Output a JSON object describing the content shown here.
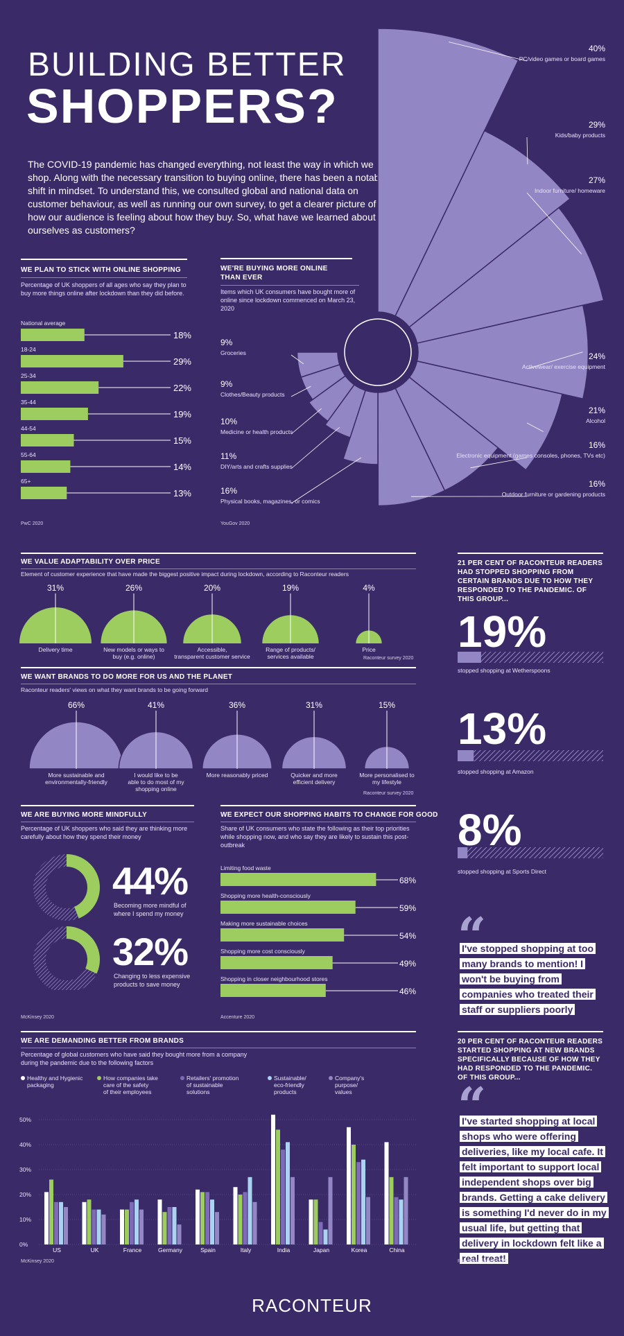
{
  "header": {
    "title_line1": "BUILDING BETTER",
    "title_line2": "SHOPPERS?",
    "intro": "The COVID-19 pandemic has changed everything, not least the way in which we shop. Along with the necessary transition to buying online, there has been a notable shift in mindset. To understand this, we consulted global and national data on customer behaviour, as well as running our own survey, to get a clearer picture of how our audience is feeling about how they buy. So, what have we learned about ourselves as customers?"
  },
  "colors": {
    "background": "#3b2a68",
    "green": "#9ccd5e",
    "lavender": "#9386c4",
    "light_blue": "#a9d3f0",
    "accent_purple": "#7e6bb8"
  },
  "online_stick": {
    "title": "WE PLAN TO STICK WITH ONLINE SHOPPING",
    "desc": "Percentage of UK shoppers of all ages who say they plan to buy more things online after lockdown than they did before.",
    "source": "PwC 2020"
  },
  "buying_more": {
    "title": "WE'RE BUYING MORE ONLINE THAN EVER",
    "desc": "Items which UK consumers have bought more of online since lockdown commenced on March 23, 2020",
    "source": "YouGov 2020"
  },
  "adaptability": {
    "title": "WE VALUE ADAPTABILITY OVER PRICE",
    "desc": "Element of customer experience that have made the biggest positive impact during lockdown, according to Raconteur readers",
    "source": "Raconteur survey 2020"
  },
  "brands_more": {
    "title": "WE WANT BRANDS TO DO MORE FOR US AND THE PLANET",
    "desc": "Raconteur readers' views on what they want brands to be going forward",
    "source": "Raconteur survey 2020"
  },
  "mindful": {
    "title": "WE ARE BUYING MORE MINDFULLY",
    "desc": "Percentage of UK shoppers who said they are thinking more carefully about how they spend their money",
    "source": "McKinsey 2020",
    "items": [
      {
        "value": "44%",
        "label": "Becoming more mindful of where I spend my money"
      },
      {
        "value": "32%",
        "label": "Changing to less expensive products to save money"
      }
    ]
  },
  "habits": {
    "title": "WE EXPECT OUR SHOPPING HABITS TO CHANGE FOR GOOD",
    "desc": "Share of UK consumers who state the following as their top priorities while shopping now, and who say they are likely to sustain this post-outbreak",
    "source": "Accenture 2020"
  },
  "demanding": {
    "title": "WE ARE DEMANDING BETTER FROM BRANDS",
    "desc": "Percentage of global customers who have said they bought more from a company during the pandemic due to the following factors",
    "source": "McKinsey 2020"
  },
  "stopped": {
    "title": "21 PER CENT OF RACONTEUR READERS HAD STOPPED SHOPPING FROM CERTAIN BRANDS DUE TO HOW THEY RESPONDED TO THE PANDEMIC. OF THIS GROUP...",
    "items": [
      {
        "value": "19%",
        "pct": 19,
        "label": "stopped shopping at Wetherspoons"
      },
      {
        "value": "13%",
        "pct": 13,
        "label": "stopped shopping at Amazon"
      },
      {
        "value": "8%",
        "pct": 8,
        "label": "stopped shopping at Sports Direct"
      }
    ],
    "quote": "I've stopped shopping at too many brands to mention! I won't be buying from companies who treated their staff or suppliers poorly"
  },
  "started": {
    "title": "20 PER CENT OF RACONTEUR READERS STARTED SHOPPING AT NEW BRANDS SPECIFICALLY BECAUSE OF HOW THEY HAD RESPONDED TO THE PANDEMIC. OF THIS GROUP...",
    "quote": "I've started shopping at local shops who were offering deliveries, like my local cafe. It felt important to support local independent shops over big brands. Getting a cake delivery is something I'd never do in my usual life, but getting that delivery in lockdown felt like a real treat!",
    "source": "Raconteur survey 2020"
  },
  "footer": {
    "brand": "RACONTEUR"
  },
  "chart_data": [
    {
      "type": "bar",
      "title": "WE PLAN TO STICK WITH ONLINE SHOPPING",
      "categories": [
        "National average",
        "18-24",
        "25-34",
        "35-44",
        "44-54",
        "55-64",
        "65+"
      ],
      "values": [
        18,
        29,
        22,
        19,
        15,
        14,
        13
      ],
      "unit": "%"
    },
    {
      "type": "pie",
      "title": "WE'RE BUYING MORE ONLINE THAN EVER",
      "categories": [
        "PC/video games or board games",
        "Kids/baby products",
        "Indoor furniture/ homeware",
        "Activewear/ exercise equipment",
        "Alcohol",
        "Electronic equipment (games consoles, phones, TVs etc)",
        "Outdoor furniture or gardening products",
        "Physical books, magazines, or comics",
        "DIY/arts and crafts supplies",
        "Medicine or health products",
        "Clothes/Beauty products",
        "Groceries"
      ],
      "values": [
        40,
        29,
        27,
        24,
        21,
        16,
        16,
        16,
        11,
        10,
        9,
        9
      ],
      "unit": "%"
    },
    {
      "type": "bar",
      "title": "WE VALUE ADAPTABILITY OVER PRICE",
      "categories": [
        "Delivery time",
        "New models or ways to buy (e.g. online)",
        "Accessible, transparent customer service",
        "Range of products/ services available",
        "Price"
      ],
      "values": [
        31,
        26,
        20,
        19,
        4
      ],
      "unit": "%"
    },
    {
      "type": "bar",
      "title": "WE WANT BRANDS TO DO MORE FOR US AND THE PLANET",
      "categories": [
        "More sustainable and environmentally-friendly",
        "I would like to be able to do most of my shopping online",
        "More reasonably priced",
        "Quicker and more efficient delivery",
        "More personalised to my lifestyle"
      ],
      "values": [
        66,
        41,
        36,
        31,
        15
      ],
      "unit": "%"
    },
    {
      "type": "bar",
      "title": "WE EXPECT OUR SHOPPING HABITS TO CHANGE FOR GOOD",
      "categories": [
        "Limiting food waste",
        "Shopping more health-consciously",
        "Making more sustainable choices",
        "Shopping more cost consciously",
        "Shopping in closer neighbourhood stores"
      ],
      "values": [
        68,
        59,
        54,
        49,
        46
      ],
      "unit": "%"
    },
    {
      "type": "bar",
      "title": "WE ARE DEMANDING BETTER FROM BRANDS",
      "categories": [
        "US",
        "UK",
        "France",
        "Germany",
        "Spain",
        "Italy",
        "India",
        "Japan",
        "Korea",
        "China"
      ],
      "ylim": [
        0,
        50
      ],
      "yticks": [
        "0%",
        "10%",
        "20%",
        "30%",
        "40%",
        "50%"
      ],
      "series": [
        {
          "name": "Healthy and Hygienic packaging",
          "color": "#ffffff",
          "values": [
            21,
            17,
            14,
            18,
            22,
            23,
            52,
            18,
            47,
            41
          ]
        },
        {
          "name": "How companies take care of the safety of their employees",
          "color": "#9ccd5e",
          "values": [
            26,
            18,
            14,
            13,
            21,
            20,
            46,
            18,
            40,
            27
          ]
        },
        {
          "name": "Retailers' promotion of sustainable solutions",
          "color": "#7e6bb8",
          "values": [
            17,
            14,
            17,
            15,
            21,
            21,
            38,
            9,
            33,
            19
          ]
        },
        {
          "name": "Sustainable/ eco-friendly products",
          "color": "#a9d3f0",
          "values": [
            17,
            14,
            18,
            15,
            18,
            27,
            41,
            6,
            34,
            18
          ]
        },
        {
          "name": "Company's purpose/ values",
          "color": "#9386c4",
          "values": [
            15,
            12,
            14,
            8,
            13,
            17,
            27,
            27,
            19,
            27
          ]
        }
      ]
    }
  ]
}
